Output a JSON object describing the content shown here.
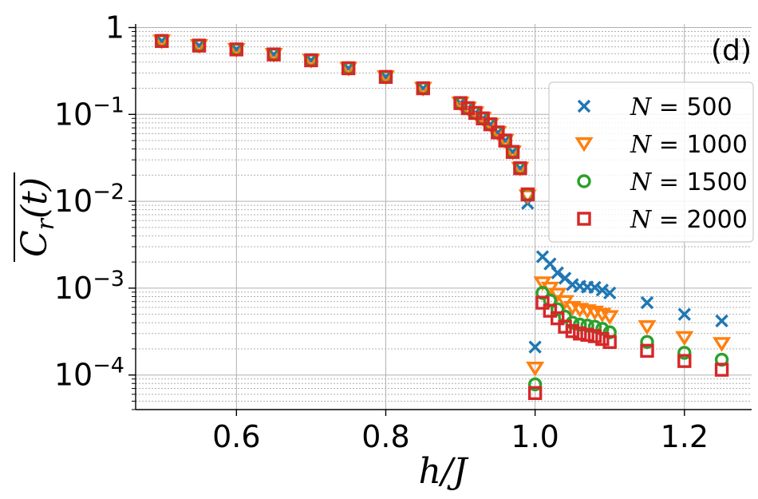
{
  "chart_data": {
    "type": "scatter",
    "panel_label": "(d)",
    "xlabel": "h/J",
    "ylabel": "C_r(t)",
    "xlim": [
      0.465,
      1.29
    ],
    "ylim": [
      4e-05,
      1.1
    ],
    "yscale": "log",
    "grid": true,
    "legend_position": "right",
    "x_ticks": [
      0.6,
      0.8,
      1.0,
      1.2
    ],
    "x_tick_labels": [
      "0.6",
      "0.8",
      "1.0",
      "1.2"
    ],
    "y_ticks": [
      0.0001,
      0.001,
      0.01,
      0.1,
      1
    ],
    "y_tick_labels": [
      {
        "base": "10",
        "exp": "−4"
      },
      {
        "base": "10",
        "exp": "−3"
      },
      {
        "base": "10",
        "exp": "−2"
      },
      {
        "base": "10",
        "exp": "−1"
      },
      {
        "base": "1",
        "exp": ""
      }
    ],
    "x": [
      0.5,
      0.55,
      0.6,
      0.65,
      0.7,
      0.75,
      0.8,
      0.85,
      0.9,
      0.91,
      0.92,
      0.93,
      0.94,
      0.95,
      0.96,
      0.97,
      0.98,
      0.99,
      1.0,
      1.01,
      1.02,
      1.03,
      1.04,
      1.05,
      1.06,
      1.07,
      1.08,
      1.09,
      1.1,
      1.15,
      1.2,
      1.25
    ],
    "series": [
      {
        "name": "500",
        "legend_prefix": "N",
        "color": "#1f77b4",
        "marker": "x",
        "values": [
          0.7,
          0.62,
          0.56,
          0.49,
          0.42,
          0.34,
          0.27,
          0.2,
          0.135,
          0.118,
          0.104,
          0.09,
          0.077,
          0.062,
          0.05,
          0.037,
          0.024,
          0.0095,
          0.00021,
          0.0023,
          0.0019,
          0.0015,
          0.0013,
          0.0011,
          0.00105,
          0.00103,
          0.00102,
          0.00095,
          0.00088,
          0.00068,
          0.0005,
          0.00042
        ]
      },
      {
        "name": "1000",
        "legend_prefix": "N",
        "color": "#ff7f0e",
        "marker": "triangle-down",
        "values": [
          0.7,
          0.62,
          0.56,
          0.49,
          0.42,
          0.34,
          0.27,
          0.2,
          0.135,
          0.118,
          0.104,
          0.09,
          0.077,
          0.062,
          0.05,
          0.037,
          0.024,
          0.0115,
          0.00012,
          0.00115,
          0.001,
          0.00085,
          0.0007,
          0.0006,
          0.00057,
          0.00055,
          0.00053,
          0.0005,
          0.00047,
          0.00036,
          0.00027,
          0.00023
        ]
      },
      {
        "name": "1500",
        "legend_prefix": "N",
        "color": "#2ca02c",
        "marker": "circle",
        "values": [
          0.7,
          0.62,
          0.56,
          0.49,
          0.42,
          0.34,
          0.27,
          0.2,
          0.135,
          0.118,
          0.104,
          0.09,
          0.077,
          0.062,
          0.05,
          0.037,
          0.024,
          0.012,
          7.8e-05,
          0.00088,
          0.00072,
          0.00057,
          0.00047,
          0.0004,
          0.00038,
          0.00037,
          0.00036,
          0.00034,
          0.00031,
          0.00024,
          0.00018,
          0.00015
        ]
      },
      {
        "name": "2000",
        "legend_prefix": "N",
        "color": "#d62728",
        "marker": "square",
        "values": [
          0.7,
          0.62,
          0.56,
          0.49,
          0.42,
          0.34,
          0.27,
          0.2,
          0.135,
          0.118,
          0.104,
          0.09,
          0.077,
          0.062,
          0.05,
          0.037,
          0.024,
          0.012,
          6.2e-05,
          0.00068,
          0.00055,
          0.00045,
          0.00036,
          0.00032,
          0.0003,
          0.00029,
          0.00028,
          0.00026,
          0.00024,
          0.00019,
          0.000145,
          0.000115
        ]
      }
    ]
  }
}
